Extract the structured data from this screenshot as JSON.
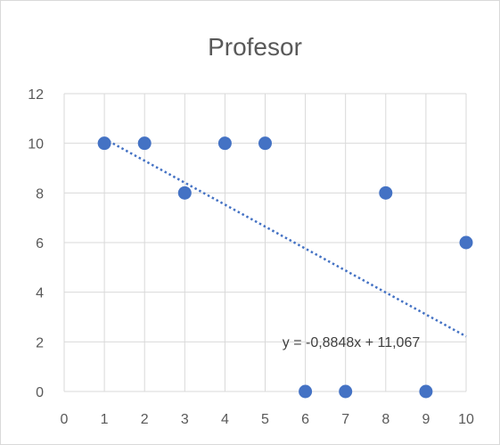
{
  "chart_data": {
    "type": "scatter",
    "title": "Profesor",
    "xlim": [
      0,
      10
    ],
    "ylim": [
      0,
      12
    ],
    "x_ticks": [
      0,
      1,
      2,
      3,
      4,
      5,
      6,
      7,
      8,
      9,
      10
    ],
    "y_ticks": [
      0,
      2,
      4,
      6,
      8,
      10,
      12
    ],
    "grid": true,
    "legend": "none",
    "series": [
      {
        "color": "#4472c4",
        "x": [
          1,
          2,
          3,
          4,
          5,
          6,
          7,
          8,
          9,
          10
        ],
        "y": [
          10,
          10,
          8,
          10,
          10,
          0,
          0,
          8,
          0,
          6
        ]
      }
    ],
    "trendline": {
      "type": "linear",
      "slope": -0.8848,
      "intercept": 11.067,
      "x_range": [
        1,
        10
      ],
      "equation_label": "y = -0,8848x + 11,067",
      "color": "#4472c4"
    }
  }
}
